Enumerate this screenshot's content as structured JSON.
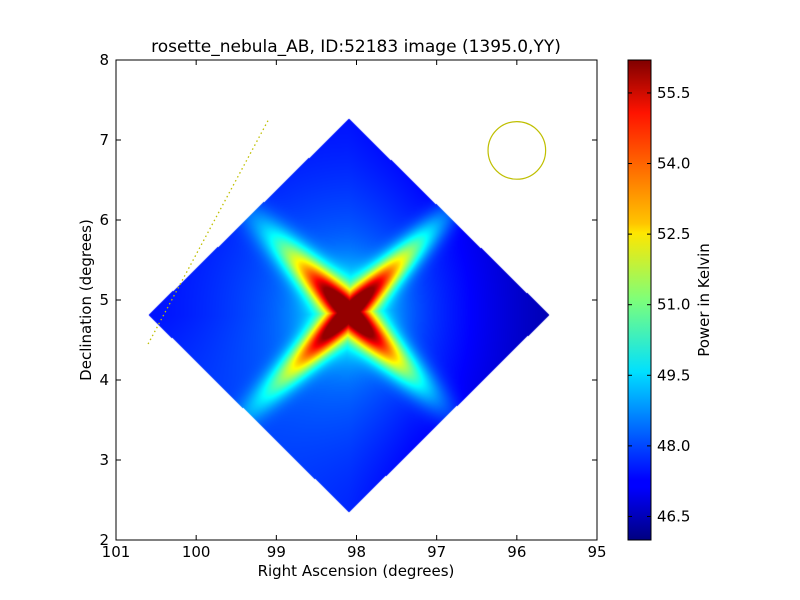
{
  "chart_data": {
    "type": "heatmap",
    "title": "rosette_nebula_AB, ID:52183 image (1395.0,YY)",
    "xlabel": "Right Ascension (degrees)",
    "ylabel": "Declination (degrees)",
    "xlim": [
      101,
      95
    ],
    "ylim": [
      2,
      8
    ],
    "x_ticks": [
      101,
      100,
      99,
      98,
      97,
      96,
      95
    ],
    "x_tick_labels": [
      "101",
      "100",
      "99",
      "98",
      "97",
      "96",
      "95"
    ],
    "y_ticks": [
      2,
      3,
      4,
      5,
      6,
      7,
      8
    ],
    "y_tick_labels": [
      "2",
      "3",
      "4",
      "5",
      "6",
      "7",
      "8"
    ],
    "colorbar": {
      "label": "Power in Kelvin",
      "colormap": "jet",
      "range": [
        46.0,
        56.2
      ],
      "ticks": [
        46.5,
        48.0,
        49.5,
        51.0,
        52.5,
        54.0,
        55.5
      ],
      "tick_labels": [
        "46.5",
        "48.0",
        "49.5",
        "51.0",
        "52.5",
        "54.0",
        "55.5"
      ]
    },
    "map": {
      "shape": "rotated-square",
      "corners": [
        {
          "ra": 98.1,
          "dec": 7.27
        },
        {
          "ra": 95.6,
          "dec": 4.82
        },
        {
          "ra": 98.1,
          "dec": 2.35
        },
        {
          "ra": 100.6,
          "dec": 4.82
        }
      ],
      "peak": {
        "ra": 98.1,
        "dec": 4.85,
        "value": 56.0
      },
      "background_value": 47.3
    },
    "beam_circle": {
      "ra": 96.0,
      "dec": 6.87,
      "radius_deg": 0.36,
      "color": "#bfbf00"
    },
    "dotted_line": {
      "ra": [
        100.6,
        99.1
      ],
      "dec": [
        4.45,
        7.25
      ],
      "color": "#bfbf00"
    }
  }
}
